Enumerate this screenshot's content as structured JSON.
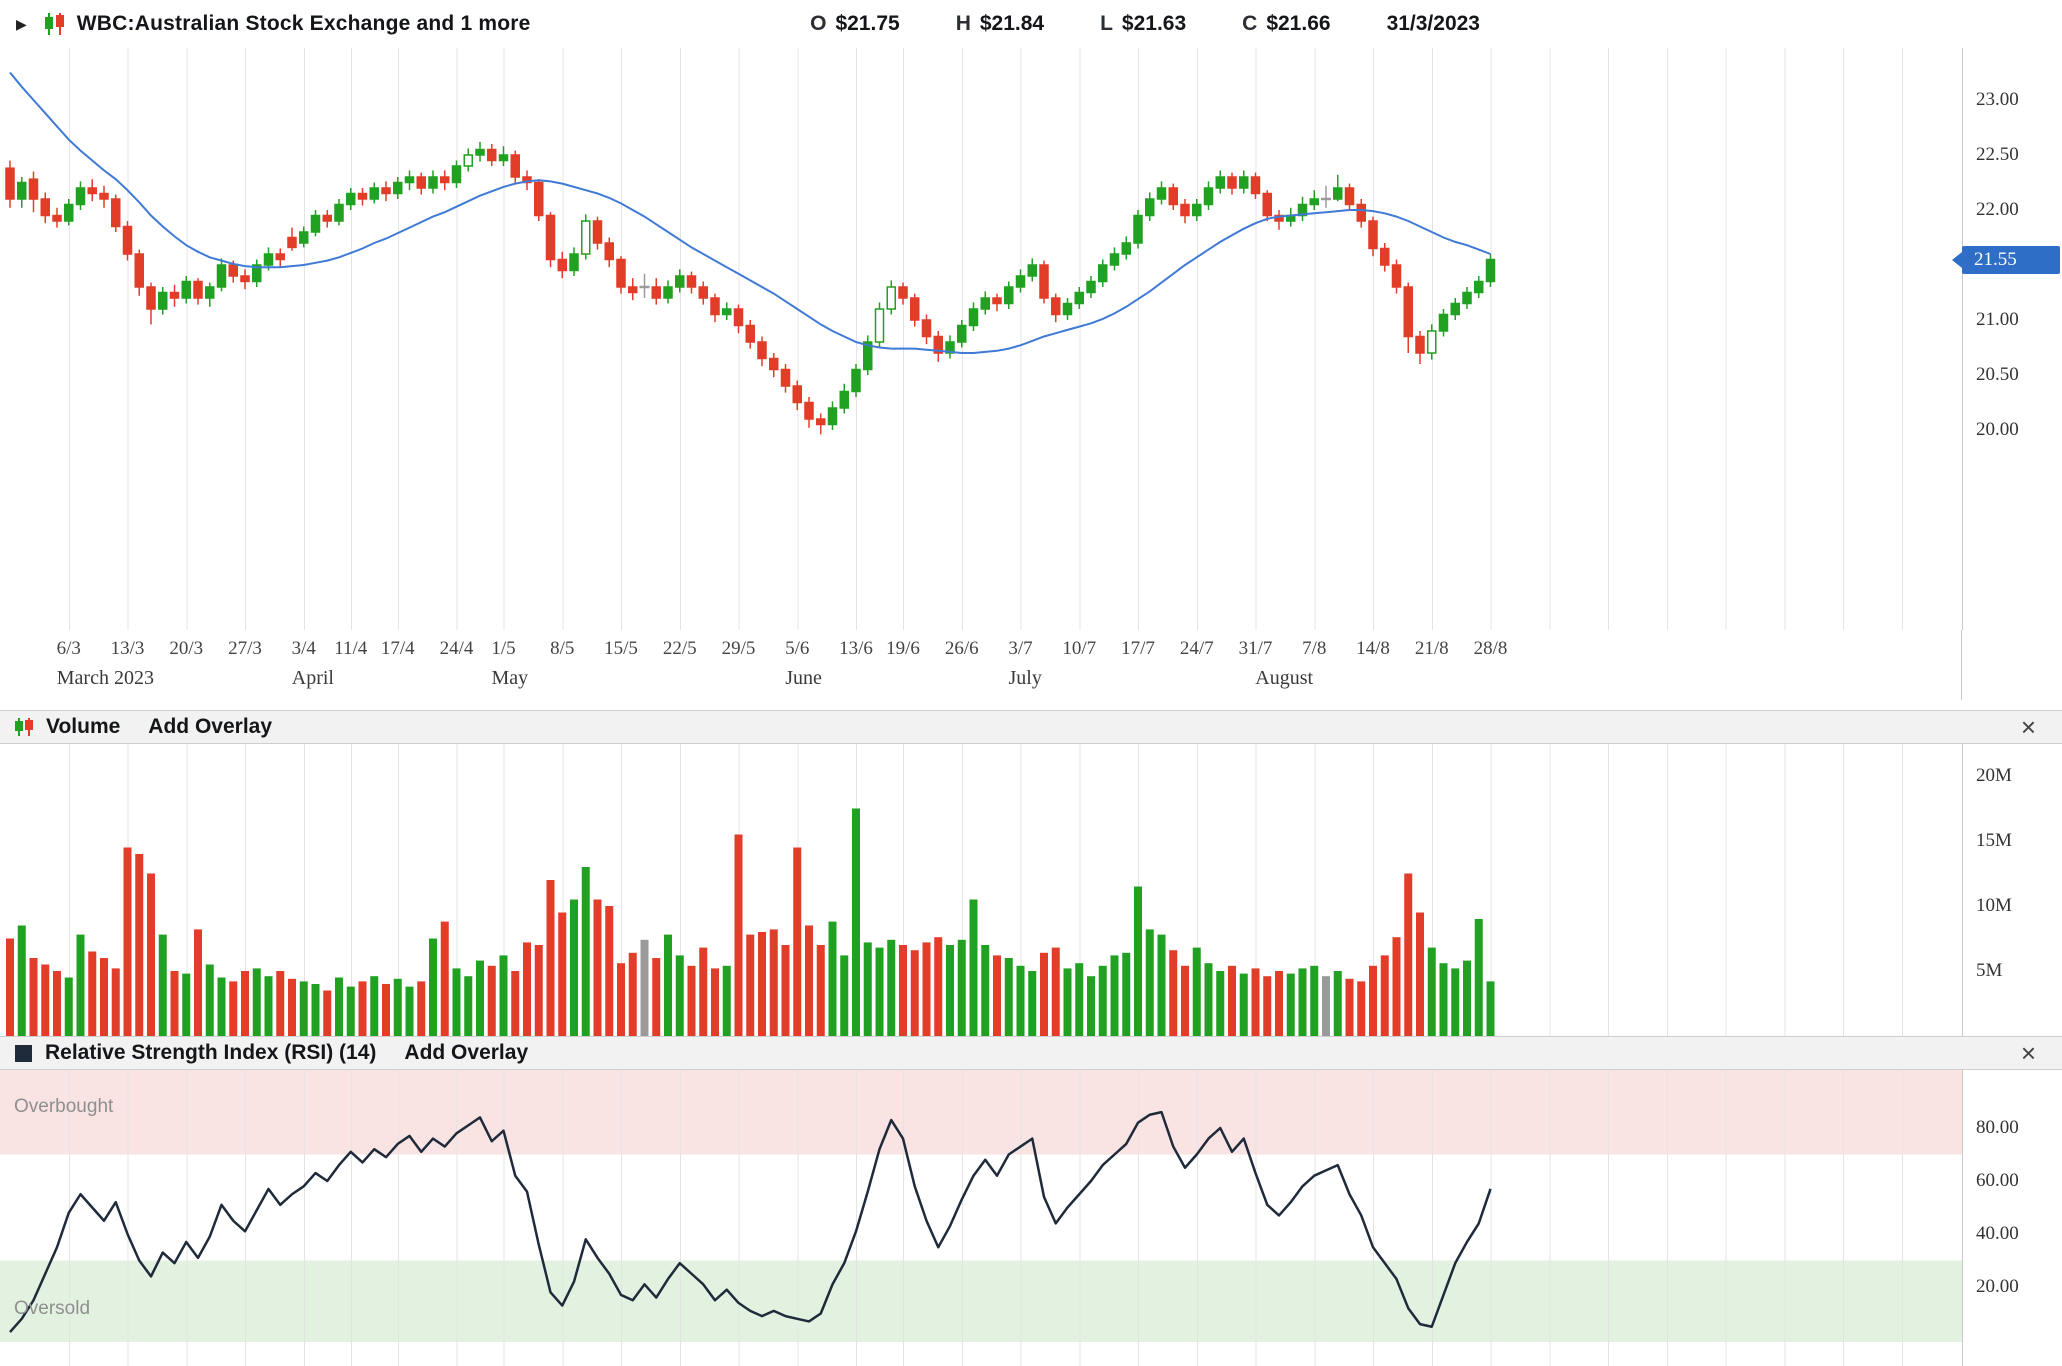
{
  "header": {
    "title": "WBC:Australian Stock Exchange and 1 more",
    "quote_items": [
      {
        "label": "O",
        "value": "$21.75"
      },
      {
        "label": "H",
        "value": "$21.84"
      },
      {
        "label": "L",
        "value": "$21.63"
      },
      {
        "label": "C",
        "value": "$21.66"
      }
    ],
    "date": "31/3/2023"
  },
  "icons": {
    "disclosure": "▶",
    "close": "×"
  },
  "panels": {
    "volume": {
      "title": "Volume",
      "overlay_link": "Add Overlay"
    },
    "rsi": {
      "title": "Relative Strength Index (RSI) (14)",
      "overlay_link": "Add Overlay",
      "overbought_label": "Overbought",
      "oversold_label": "Oversold"
    }
  },
  "colors": {
    "up": "#21a121",
    "down": "#e23d28",
    "neutral": "#9a9a9a",
    "ma": "#3f7ad6",
    "rsi": "#1f2a3a",
    "price_tag": "#2e6ec6",
    "overbought": "#fae3e3",
    "oversold": "#e3f2e0",
    "grid": "#e4e4e4"
  },
  "chart_data": {
    "type": "candlestick",
    "symbol": "WBC",
    "title": "WBC:Australian Stock Exchange and 1 more",
    "dates": [
      "27/2",
      "28/2",
      "1/3",
      "2/3",
      "3/3",
      "6/3",
      "7/3",
      "8/3",
      "9/3",
      "10/3",
      "13/3",
      "14/3",
      "15/3",
      "16/3",
      "17/3",
      "20/3",
      "21/3",
      "22/3",
      "23/3",
      "24/3",
      "27/3",
      "28/3",
      "29/3",
      "30/3",
      "31/3",
      "3/4",
      "4/4",
      "5/4",
      "6/4",
      "11/4",
      "12/4",
      "13/4",
      "14/4",
      "17/4",
      "18/4",
      "19/4",
      "20/4",
      "21/4",
      "24/4",
      "26/4",
      "27/4",
      "28/4",
      "1/5",
      "2/5",
      "3/5",
      "4/5",
      "5/5",
      "8/5",
      "9/5",
      "10/5",
      "11/5",
      "12/5",
      "15/5",
      "16/5",
      "17/5",
      "18/5",
      "19/5",
      "22/5",
      "23/5",
      "24/5",
      "25/5",
      "26/5",
      "29/5",
      "30/5",
      "31/5",
      "1/6",
      "2/6",
      "5/6",
      "6/6",
      "7/6",
      "8/6",
      "9/6",
      "13/6",
      "14/6",
      "15/6",
      "16/6",
      "19/6",
      "20/6",
      "21/6",
      "22/6",
      "23/6",
      "26/6",
      "27/6",
      "28/6",
      "29/6",
      "30/6",
      "3/7",
      "4/7",
      "5/7",
      "6/7",
      "7/7",
      "10/7",
      "11/7",
      "12/7",
      "13/7",
      "14/7",
      "17/7",
      "18/7",
      "19/7",
      "20/7",
      "21/7",
      "24/7",
      "25/7",
      "26/7",
      "27/7",
      "28/7",
      "31/7",
      "1/8",
      "2/8",
      "3/8",
      "4/8",
      "7/8",
      "8/8",
      "9/8",
      "10/8",
      "11/8",
      "14/8",
      "15/8",
      "16/8",
      "17/8",
      "18/8",
      "21/8",
      "22/8",
      "23/8",
      "24/8",
      "25/8",
      "28/8"
    ],
    "candles": [
      [
        22.38,
        22.45,
        22.02,
        22.1
      ],
      [
        22.1,
        22.3,
        22.02,
        22.25
      ],
      [
        22.28,
        22.35,
        21.98,
        22.1
      ],
      [
        22.1,
        22.16,
        21.88,
        21.95
      ],
      [
        21.95,
        22.02,
        21.84,
        21.9
      ],
      [
        21.9,
        22.1,
        21.86,
        22.05
      ],
      [
        22.05,
        22.26,
        22.0,
        22.2
      ],
      [
        22.2,
        22.28,
        22.08,
        22.15
      ],
      [
        22.15,
        22.22,
        22.02,
        22.1
      ],
      [
        22.1,
        22.14,
        21.8,
        21.85
      ],
      [
        21.85,
        21.9,
        21.54,
        21.6
      ],
      [
        21.6,
        21.64,
        21.22,
        21.3
      ],
      [
        21.3,
        21.34,
        20.96,
        21.1
      ],
      [
        21.1,
        21.3,
        21.05,
        21.25
      ],
      [
        21.25,
        21.32,
        21.12,
        21.2
      ],
      [
        21.2,
        21.4,
        21.15,
        21.35
      ],
      [
        21.35,
        21.38,
        21.14,
        21.2
      ],
      [
        21.2,
        21.34,
        21.12,
        21.3
      ],
      [
        21.3,
        21.56,
        21.26,
        21.5
      ],
      [
        21.5,
        21.54,
        21.34,
        21.4
      ],
      [
        21.4,
        21.46,
        21.28,
        21.35
      ],
      [
        21.35,
        21.55,
        21.3,
        21.5
      ],
      [
        21.5,
        21.66,
        21.45,
        21.6
      ],
      [
        21.6,
        21.65,
        21.48,
        21.55
      ],
      [
        21.75,
        21.84,
        21.63,
        21.66
      ],
      [
        21.7,
        21.85,
        21.66,
        21.8
      ],
      [
        21.8,
        22.0,
        21.76,
        21.95
      ],
      [
        21.95,
        22.0,
        21.84,
        21.9
      ],
      [
        21.9,
        22.1,
        21.86,
        22.05
      ],
      [
        22.05,
        22.2,
        22.0,
        22.15
      ],
      [
        22.15,
        22.2,
        22.04,
        22.1
      ],
      [
        22.1,
        22.25,
        22.06,
        22.2
      ],
      [
        22.2,
        22.26,
        22.08,
        22.15
      ],
      [
        22.15,
        22.3,
        22.1,
        22.25
      ],
      [
        22.25,
        22.36,
        22.18,
        22.3
      ],
      [
        22.3,
        22.34,
        22.14,
        22.2
      ],
      [
        22.2,
        22.36,
        22.15,
        22.3
      ],
      [
        22.3,
        22.36,
        22.18,
        22.25
      ],
      [
        22.25,
        22.45,
        22.2,
        22.4
      ],
      [
        22.4,
        22.56,
        22.35,
        22.5,
        1
      ],
      [
        22.5,
        22.62,
        22.44,
        22.55
      ],
      [
        22.55,
        22.6,
        22.4,
        22.45
      ],
      [
        22.45,
        22.58,
        22.4,
        22.5
      ],
      [
        22.5,
        22.54,
        22.24,
        22.3
      ],
      [
        22.3,
        22.36,
        22.18,
        22.25
      ],
      [
        22.25,
        22.28,
        21.9,
        21.95
      ],
      [
        21.95,
        21.98,
        21.48,
        21.55
      ],
      [
        21.55,
        21.62,
        21.38,
        21.45
      ],
      [
        21.45,
        21.66,
        21.4,
        21.6
      ],
      [
        21.6,
        21.96,
        21.55,
        21.9,
        1
      ],
      [
        21.9,
        21.94,
        21.64,
        21.7
      ],
      [
        21.7,
        21.75,
        21.48,
        21.55
      ],
      [
        21.55,
        21.58,
        21.24,
        21.3
      ],
      [
        21.3,
        21.38,
        21.18,
        21.25
      ],
      [
        21.3,
        21.42,
        21.2,
        21.3
      ],
      [
        21.3,
        21.38,
        21.14,
        21.2
      ],
      [
        21.2,
        21.36,
        21.15,
        21.3
      ],
      [
        21.3,
        21.46,
        21.25,
        21.4
      ],
      [
        21.4,
        21.44,
        21.24,
        21.3
      ],
      [
        21.3,
        21.35,
        21.14,
        21.2
      ],
      [
        21.2,
        21.24,
        20.98,
        21.05
      ],
      [
        21.05,
        21.16,
        21.0,
        21.1
      ],
      [
        21.1,
        21.14,
        20.88,
        20.95
      ],
      [
        20.95,
        21.0,
        20.74,
        20.8
      ],
      [
        20.8,
        20.85,
        20.58,
        20.65
      ],
      [
        20.65,
        20.7,
        20.48,
        20.55
      ],
      [
        20.55,
        20.6,
        20.34,
        20.4
      ],
      [
        20.4,
        20.45,
        20.18,
        20.25
      ],
      [
        20.25,
        20.3,
        20.02,
        20.1
      ],
      [
        20.1,
        20.15,
        19.96,
        20.05
      ],
      [
        20.05,
        20.26,
        20.0,
        20.2
      ],
      [
        20.2,
        20.42,
        20.15,
        20.35
      ],
      [
        20.35,
        20.6,
        20.3,
        20.55
      ],
      [
        20.55,
        20.86,
        20.5,
        20.8
      ],
      [
        20.8,
        21.16,
        20.75,
        21.1,
        1
      ],
      [
        21.1,
        21.36,
        21.05,
        21.3,
        1
      ],
      [
        21.3,
        21.34,
        21.14,
        21.2
      ],
      [
        21.2,
        21.24,
        20.94,
        21.0
      ],
      [
        21.0,
        21.05,
        20.78,
        20.85
      ],
      [
        20.85,
        20.9,
        20.62,
        20.7
      ],
      [
        20.7,
        20.86,
        20.65,
        20.8
      ],
      [
        20.8,
        21.0,
        20.75,
        20.95
      ],
      [
        20.95,
        21.16,
        20.9,
        21.1
      ],
      [
        21.1,
        21.26,
        21.05,
        21.2
      ],
      [
        21.2,
        21.24,
        21.08,
        21.15
      ],
      [
        21.15,
        21.35,
        21.1,
        21.3
      ],
      [
        21.3,
        21.46,
        21.25,
        21.4
      ],
      [
        21.4,
        21.56,
        21.35,
        21.5
      ],
      [
        21.5,
        21.54,
        21.15,
        21.2
      ],
      [
        21.2,
        21.24,
        20.98,
        21.05
      ],
      [
        21.05,
        21.2,
        21.0,
        21.15
      ],
      [
        21.15,
        21.3,
        21.1,
        21.25
      ],
      [
        21.25,
        21.4,
        21.2,
        21.35
      ],
      [
        21.35,
        21.55,
        21.3,
        21.5
      ],
      [
        21.5,
        21.66,
        21.45,
        21.6
      ],
      [
        21.6,
        21.76,
        21.55,
        21.7
      ],
      [
        21.7,
        22.0,
        21.65,
        21.95
      ],
      [
        21.95,
        22.16,
        21.9,
        22.1
      ],
      [
        22.1,
        22.26,
        22.05,
        22.2
      ],
      [
        22.2,
        22.24,
        22.0,
        22.05
      ],
      [
        22.05,
        22.1,
        21.88,
        21.95
      ],
      [
        21.95,
        22.1,
        21.9,
        22.05
      ],
      [
        22.05,
        22.26,
        22.0,
        22.2
      ],
      [
        22.2,
        22.36,
        22.15,
        22.3
      ],
      [
        22.3,
        22.34,
        22.14,
        22.2
      ],
      [
        22.2,
        22.36,
        22.15,
        22.3
      ],
      [
        22.3,
        22.34,
        22.1,
        22.15
      ],
      [
        22.15,
        22.18,
        21.9,
        21.95
      ],
      [
        21.95,
        22.0,
        21.82,
        21.9
      ],
      [
        21.9,
        22.02,
        21.85,
        21.95
      ],
      [
        21.95,
        22.12,
        21.9,
        22.05
      ],
      [
        22.05,
        22.18,
        22.0,
        22.1
      ],
      [
        22.1,
        22.22,
        22.02,
        22.1
      ],
      [
        22.1,
        22.32,
        22.08,
        22.2
      ],
      [
        22.2,
        22.24,
        22.0,
        22.05
      ],
      [
        22.05,
        22.1,
        21.84,
        21.9
      ],
      [
        21.9,
        21.94,
        21.58,
        21.65
      ],
      [
        21.65,
        21.7,
        21.44,
        21.5
      ],
      [
        21.5,
        21.55,
        21.24,
        21.3
      ],
      [
        21.3,
        21.34,
        20.7,
        20.85
      ],
      [
        20.85,
        20.9,
        20.6,
        20.7
      ],
      [
        20.7,
        20.96,
        20.64,
        20.9,
        1
      ],
      [
        20.9,
        21.1,
        20.85,
        21.05
      ],
      [
        21.05,
        21.2,
        21.0,
        21.15
      ],
      [
        21.15,
        21.3,
        21.1,
        21.25
      ],
      [
        21.25,
        21.4,
        21.2,
        21.35
      ],
      [
        21.35,
        21.6,
        21.3,
        21.55
      ]
    ],
    "ma_line": [
      23.25,
      23.12,
      23.0,
      22.88,
      22.76,
      22.64,
      22.54,
      22.45,
      22.36,
      22.28,
      22.18,
      22.07,
      21.95,
      21.85,
      21.76,
      21.68,
      21.62,
      21.57,
      21.54,
      21.51,
      21.49,
      21.48,
      21.48,
      21.48,
      21.49,
      21.5,
      21.52,
      21.54,
      21.57,
      21.61,
      21.65,
      21.7,
      21.74,
      21.79,
      21.84,
      21.89,
      21.94,
      21.98,
      22.03,
      22.08,
      22.13,
      22.17,
      22.21,
      22.24,
      22.26,
      22.27,
      22.26,
      22.24,
      22.21,
      22.18,
      22.15,
      22.11,
      22.06,
      22.0,
      21.94,
      21.87,
      21.8,
      21.73,
      21.66,
      21.6,
      21.54,
      21.48,
      21.42,
      21.36,
      21.3,
      21.24,
      21.17,
      21.1,
      21.03,
      20.96,
      20.9,
      20.85,
      20.8,
      20.77,
      20.75,
      20.74,
      20.74,
      20.74,
      20.73,
      20.72,
      20.71,
      20.7,
      20.7,
      20.71,
      20.72,
      20.74,
      20.77,
      20.81,
      20.85,
      20.88,
      20.91,
      20.94,
      20.97,
      21.01,
      21.06,
      21.12,
      21.19,
      21.26,
      21.34,
      21.42,
      21.5,
      21.57,
      21.64,
      21.71,
      21.77,
      21.83,
      21.88,
      21.92,
      21.94,
      21.95,
      21.96,
      21.97,
      21.98,
      21.99,
      22.0,
      22.0,
      21.99,
      21.97,
      21.94,
      21.9,
      21.85,
      21.8,
      21.75,
      21.71,
      21.68,
      21.64,
      21.6
    ],
    "volumes_millions": [
      7.5,
      8.5,
      6.0,
      5.5,
      5.0,
      4.5,
      7.8,
      6.5,
      6.0,
      5.2,
      14.5,
      14.0,
      12.5,
      7.8,
      5.0,
      4.8,
      8.2,
      5.5,
      4.5,
      4.2,
      5.0,
      5.2,
      4.6,
      5.0,
      4.4,
      4.2,
      4.0,
      3.5,
      4.5,
      3.8,
      4.2,
      4.6,
      4.0,
      4.4,
      3.8,
      4.2,
      7.5,
      8.8,
      5.2,
      4.6,
      5.8,
      5.4,
      6.2,
      5.0,
      7.2,
      7.0,
      12.0,
      9.5,
      10.5,
      13.0,
      10.5,
      10.0,
      5.6,
      6.4,
      7.4,
      6.0,
      7.8,
      6.2,
      5.4,
      6.8,
      5.2,
      5.4,
      15.5,
      7.8,
      8.0,
      8.2,
      7.0,
      14.5,
      8.5,
      7.0,
      8.8,
      6.2,
      17.5,
      7.2,
      6.8,
      7.4,
      7.0,
      6.6,
      7.2,
      7.6,
      7.0,
      7.4,
      10.5,
      7.0,
      6.2,
      6.0,
      5.4,
      5.0,
      6.4,
      6.8,
      5.2,
      5.6,
      4.6,
      5.4,
      6.2,
      6.4,
      11.5,
      8.2,
      7.8,
      6.6,
      5.4,
      6.8,
      5.6,
      5.0,
      5.4,
      4.8,
      5.2,
      4.6,
      5.0,
      4.8,
      5.2,
      5.4,
      4.6,
      5.0,
      4.4,
      4.2,
      5.4,
      6.2,
      7.6,
      12.5,
      9.5,
      6.8,
      5.6,
      5.2,
      5.8,
      9.0,
      4.2
    ],
    "rsi14": [
      3,
      8,
      15,
      25,
      35,
      48,
      55,
      50,
      45,
      52,
      40,
      30,
      24,
      33,
      29,
      37,
      31,
      39,
      51,
      45,
      41,
      49,
      57,
      51,
      55,
      58,
      63,
      60,
      66,
      71,
      67,
      72,
      69,
      74,
      77,
      71,
      76,
      73,
      78,
      81,
      84,
      75,
      79,
      62,
      56,
      36,
      18,
      13,
      22,
      38,
      31,
      25,
      17,
      15,
      21,
      16,
      23,
      29,
      25,
      21,
      15,
      19,
      14,
      11,
      9,
      11,
      9,
      8,
      7,
      10,
      21,
      29,
      41,
      56,
      72,
      83,
      76,
      58,
      45,
      35,
      43,
      53,
      62,
      68,
      62,
      70,
      73,
      76,
      54,
      44,
      50,
      55,
      60,
      66,
      70,
      74,
      82,
      85,
      86,
      73,
      65,
      70,
      76,
      80,
      71,
      76,
      63,
      51,
      47,
      52,
      58,
      62,
      64,
      66,
      55,
      47,
      35,
      29,
      23,
      12,
      6,
      5,
      17,
      29,
      37,
      44,
      57
    ],
    "x_ticks": [
      "6/3",
      "13/3",
      "20/3",
      "27/3",
      "3/4",
      "11/4",
      "17/4",
      "24/4",
      "1/5",
      "8/5",
      "15/5",
      "22/5",
      "29/5",
      "5/6",
      "13/6",
      "19/6",
      "26/6",
      "3/7",
      "10/7",
      "17/7",
      "24/7",
      "31/7",
      "7/8",
      "14/8",
      "21/8",
      "28/8"
    ],
    "month_labels": [
      {
        "label": "March 2023",
        "date": "6/3"
      },
      {
        "label": "April",
        "date": "3/4"
      },
      {
        "label": "May",
        "date": "1/5"
      },
      {
        "label": "June",
        "date": "5/6"
      },
      {
        "label": "July",
        "date": "3/7"
      },
      {
        "label": "August",
        "date": "1/8"
      }
    ],
    "price_axis": {
      "ticks": [
        23.0,
        22.5,
        22.0,
        21.0,
        20.5,
        20.0
      ],
      "labels": [
        "23.00",
        "22.50",
        "22.00",
        "21.00",
        "20.50",
        "20.00"
      ],
      "last_price": 21.55,
      "last_price_label": "21.55"
    },
    "volume_axis": {
      "ticks": [
        20,
        15,
        10,
        5
      ],
      "labels": [
        "20M",
        "15M",
        "10M",
        "5M"
      ]
    },
    "rsi_axis": {
      "ticks": [
        80,
        60,
        40,
        20
      ],
      "labels": [
        "80.00",
        "60.00",
        "40.00",
        "20.00"
      ],
      "overbought_from": 70,
      "oversold_to": 30,
      "range": [
        0,
        100
      ]
    }
  }
}
